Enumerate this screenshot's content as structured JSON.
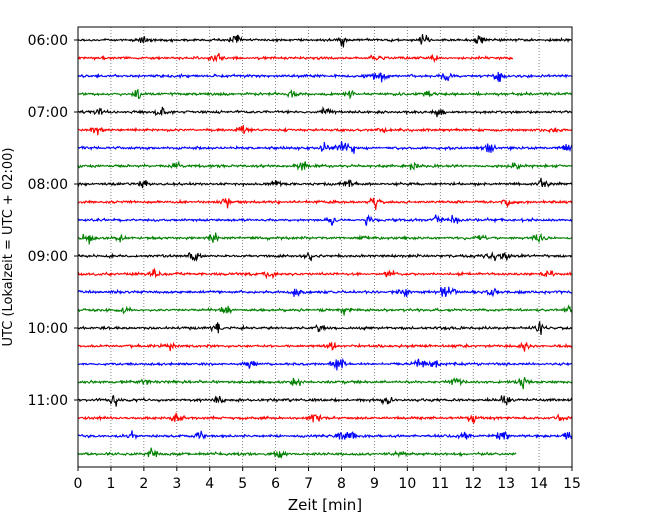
{
  "chart_data": {
    "type": "line",
    "title": "",
    "xlabel": "Zeit  [min]",
    "ylabel": "UTC (Lokalzeit = UTC + 02:00)",
    "xlim": [
      0,
      15
    ],
    "x_ticks": [
      "0",
      "1",
      "2",
      "3",
      "4",
      "5",
      "6",
      "7",
      "8",
      "9",
      "10",
      "11",
      "12",
      "13",
      "14",
      "15"
    ],
    "y_ticks": [
      "06:00",
      "07:00",
      "08:00",
      "09:00",
      "10:00",
      "11:00"
    ],
    "grid": "vertical dotted",
    "series_colors": [
      "#000000",
      "#ff0000",
      "#0000ff",
      "#008000"
    ],
    "traces": [
      {
        "start": "06:00",
        "end_min": 15,
        "color": "#000000",
        "events": [
          2.0,
          4.8,
          8.0,
          10.5,
          12.2
        ]
      },
      {
        "start": "06:15",
        "end_min": 13.2,
        "color": "#ff0000",
        "events": [
          4.2,
          9.0,
          10.8
        ]
      },
      {
        "start": "06:30",
        "end_min": 15,
        "color": "#0000ff",
        "events": [
          8.9,
          9.3,
          11.2,
          12.8
        ]
      },
      {
        "start": "06:45",
        "end_min": 15,
        "color": "#008000",
        "events": [
          1.8,
          6.5,
          8.2,
          10.6
        ]
      },
      {
        "start": "07:00",
        "end_min": 15,
        "color": "#000000",
        "events": [
          0.6,
          2.5,
          7.5,
          11.0
        ]
      },
      {
        "start": "07:15",
        "end_min": 15,
        "color": "#ff0000",
        "events": [
          0.55,
          5.0,
          9.2,
          14.5
        ]
      },
      {
        "start": "07:30",
        "end_min": 15,
        "color": "#0000ff",
        "events": [
          7.5,
          8.0,
          8.3,
          12.5,
          14.8
        ]
      },
      {
        "start": "07:45",
        "end_min": 15,
        "color": "#008000",
        "events": [
          3.0,
          6.8,
          10.2,
          13.3
        ]
      },
      {
        "start": "08:00",
        "end_min": 15,
        "color": "#000000",
        "events": [
          2.0,
          6.0,
          8.2,
          14.1
        ]
      },
      {
        "start": "08:15",
        "end_min": 15,
        "color": "#ff0000",
        "events": [
          4.5,
          9.0,
          13.0
        ]
      },
      {
        "start": "08:30",
        "end_min": 15,
        "color": "#0000ff",
        "events": [
          7.7,
          8.8,
          10.9,
          11.4
        ]
      },
      {
        "start": "08:45",
        "end_min": 15,
        "color": "#008000",
        "events": [
          0.3,
          1.2,
          4.1,
          8.7,
          12.2,
          14.0
        ]
      },
      {
        "start": "09:00",
        "end_min": 15,
        "color": "#000000",
        "events": [
          3.5,
          7.0,
          12.6,
          13.0
        ]
      },
      {
        "start": "09:15",
        "end_min": 15,
        "color": "#ff0000",
        "events": [
          2.3,
          5.8,
          9.5,
          14.3
        ]
      },
      {
        "start": "09:30",
        "end_min": 15,
        "color": "#0000ff",
        "events": [
          6.6,
          9.9,
          11.1,
          11.4,
          12.6
        ]
      },
      {
        "start": "09:45",
        "end_min": 15,
        "color": "#008000",
        "events": [
          1.4,
          4.5,
          8.1,
          14.9
        ]
      },
      {
        "start": "10:00",
        "end_min": 15,
        "color": "#000000",
        "events": [
          4.2,
          7.3,
          14.0
        ]
      },
      {
        "start": "10:15",
        "end_min": 15,
        "color": "#ff0000",
        "events": [
          2.8,
          7.7,
          13.6
        ]
      },
      {
        "start": "10:30",
        "end_min": 15,
        "color": "#0000ff",
        "events": [
          5.2,
          7.8,
          8.0,
          10.4,
          10.8
        ]
      },
      {
        "start": "10:45",
        "end_min": 15,
        "color": "#008000",
        "events": [
          2.0,
          6.6,
          11.5,
          13.5
        ]
      },
      {
        "start": "11:00",
        "end_min": 15,
        "color": "#000000",
        "events": [
          1.1,
          4.3,
          9.4,
          13.0
        ]
      },
      {
        "start": "11:15",
        "end_min": 15,
        "color": "#ff0000",
        "events": [
          3.0,
          7.2,
          12.0,
          14.7
        ]
      },
      {
        "start": "11:30",
        "end_min": 15,
        "color": "#0000ff",
        "events": [
          1.6,
          3.7,
          8.0,
          8.3,
          11.7,
          12.9,
          14.9
        ]
      },
      {
        "start": "11:45",
        "end_min": 13.3,
        "color": "#008000",
        "events": [
          2.3,
          6.1,
          9.8
        ]
      }
    ]
  }
}
